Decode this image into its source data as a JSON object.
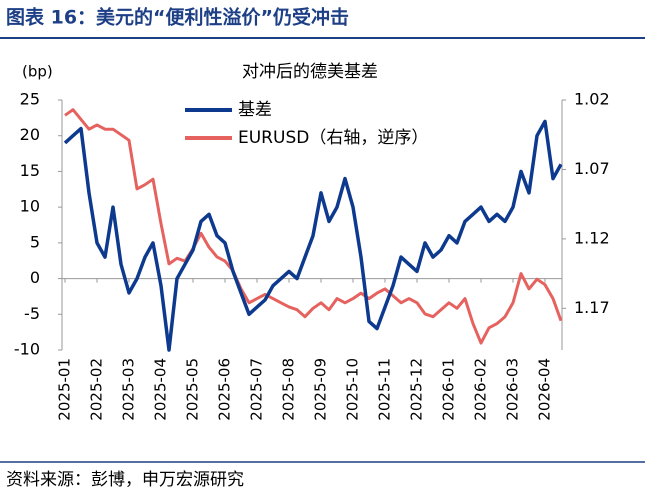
{
  "header": {
    "title": "图表 16：美元的“便利性溢价”仍受冲击"
  },
  "source": "资料来源：彭博，申万宏源研究",
  "chart_data": {
    "type": "line",
    "title": "对冲后的德美基差",
    "y_label": "(bp)",
    "categories": [
      "2025-01",
      null,
      null,
      null,
      "2025-02",
      null,
      null,
      null,
      "2025-03",
      null,
      null,
      null,
      "2025-04",
      null,
      null,
      null,
      "2025-05",
      null,
      null,
      null,
      "2025-06",
      null,
      null,
      null,
      "2025-07",
      null,
      null,
      null,
      "2025-08",
      null,
      null,
      null,
      "2025-09",
      null,
      null,
      null,
      "2025-10",
      null,
      null,
      null,
      "2025-11",
      null,
      null,
      null,
      "2025-12",
      null,
      null,
      null,
      "2026-01",
      null,
      null,
      null,
      "2026-02",
      null,
      null,
      null,
      "2026-03",
      null,
      null,
      null,
      "2026-04",
      null,
      null
    ],
    "series": [
      {
        "name": "基差",
        "color": "#0d3a8e",
        "values": [
          19,
          20,
          21,
          12,
          5,
          3,
          10,
          2,
          -2,
          0,
          3,
          5,
          -1,
          -10,
          0,
          2,
          4,
          8,
          9,
          6,
          5,
          1,
          -2,
          -5,
          -4,
          -3,
          -1,
          0,
          1,
          0,
          3,
          6,
          12,
          8,
          10,
          14,
          10,
          3,
          -6,
          -7,
          -4,
          -1,
          3,
          2,
          1,
          5,
          3,
          4,
          6,
          5,
          8,
          9,
          10,
          8,
          9,
          8,
          10,
          15,
          12,
          20,
          22,
          14,
          16
        ]
      },
      {
        "name": "EURUSD（右轴，逆序）",
        "color": "#e5625f",
        "axis": "y2",
        "values": [
          1.031,
          1.027,
          1.034,
          1.041,
          1.038,
          1.041,
          1.041,
          1.045,
          1.049,
          1.084,
          1.081,
          1.077,
          1.109,
          1.138,
          1.134,
          1.136,
          1.127,
          1.116,
          1.126,
          1.133,
          1.136,
          1.143,
          1.156,
          1.166,
          1.163,
          1.16,
          1.163,
          1.166,
          1.169,
          1.171,
          1.176,
          1.17,
          1.166,
          1.171,
          1.163,
          1.166,
          1.163,
          1.159,
          1.163,
          1.159,
          1.156,
          1.161,
          1.166,
          1.163,
          1.166,
          1.174,
          1.176,
          1.171,
          1.166,
          1.17,
          1.163,
          1.181,
          1.195,
          1.184,
          1.181,
          1.176,
          1.166,
          1.145,
          1.156,
          1.149,
          1.153,
          1.163,
          1.179
        ]
      }
    ],
    "ylim": [
      -10,
      25
    ],
    "yticks": [
      -10,
      -5,
      0,
      5,
      10,
      15,
      20,
      25
    ],
    "y2lim": [
      1.2,
      1.02
    ],
    "y2ticks": [
      {
        "value": 1.02,
        "label": "1.02"
      },
      1.07,
      1.12,
      1.17
    ],
    "legend": "upper-left",
    "grid": false
  }
}
